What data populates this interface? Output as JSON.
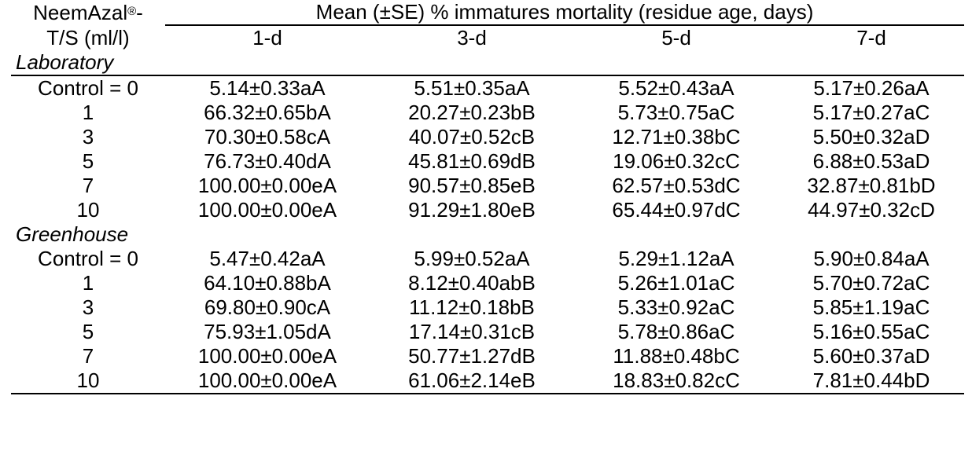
{
  "header": {
    "treatment_label_part1": "NeemAzal",
    "treatment_label_reg": "®",
    "treatment_label_part2": "-",
    "treatment_label_line2": "T/S (ml/l)",
    "span_title": "Mean (±SE) % immatures mortality  (residue age, days)",
    "columns": [
      "1-d",
      "3-d",
      "5-d",
      "7-d"
    ]
  },
  "sections": [
    {
      "title": "Laboratory",
      "rows": [
        {
          "dose": "Control = 0",
          "values": [
            "5.14±0.33aA",
            "5.51±0.35aA",
            "5.52±0.43aA",
            "5.17±0.26aA"
          ]
        },
        {
          "dose": "1",
          "values": [
            "66.32±0.65bA",
            "20.27±0.23bB",
            "5.73±0.75aC",
            "5.17±0.27aC"
          ]
        },
        {
          "dose": "3",
          "values": [
            "70.30±0.58cA",
            "40.07±0.52cB",
            "12.71±0.38bC",
            "5.50±0.32aD"
          ]
        },
        {
          "dose": "5",
          "values": [
            "76.73±0.40dA",
            "45.81±0.69dB",
            "19.06±0.32cC",
            "6.88±0.53aD"
          ]
        },
        {
          "dose": "7",
          "values": [
            "100.00±0.00eA",
            "90.57±0.85eB",
            "62.57±0.53dC",
            "32.87±0.81bD"
          ]
        },
        {
          "dose": "10",
          "values": [
            "100.00±0.00eA",
            "91.29±1.80eB",
            "65.44±0.97dC",
            "44.97±0.32cD"
          ]
        }
      ]
    },
    {
      "title": "Greenhouse",
      "rows": [
        {
          "dose": "Control = 0",
          "values": [
            "5.47±0.42aA",
            "5.99±0.52aA",
            "5.29±1.12aA",
            "5.90±0.84aA"
          ]
        },
        {
          "dose": "1",
          "values": [
            "64.10±0.88bA",
            "8.12±0.40abB",
            "5.26±1.01aC",
            "5.70±0.72aC"
          ]
        },
        {
          "dose": "3",
          "values": [
            "69.80±0.90cA",
            "11.12±0.18bB",
            "5.33±0.92aC",
            "5.85±1.19aC"
          ]
        },
        {
          "dose": "5",
          "values": [
            "75.93±1.05dA",
            "17.14±0.31cB",
            "5.78±0.86aC",
            "5.16±0.55aC"
          ]
        },
        {
          "dose": "7",
          "values": [
            "100.00±0.00eA",
            "50.77±1.27dB",
            "11.88±0.48bC",
            "5.60±0.37aD"
          ]
        },
        {
          "dose": "10",
          "values": [
            "100.00±0.00eA",
            "61.06±2.14eB",
            "18.83±0.82cC",
            "7.81±0.44bD"
          ]
        }
      ]
    }
  ]
}
